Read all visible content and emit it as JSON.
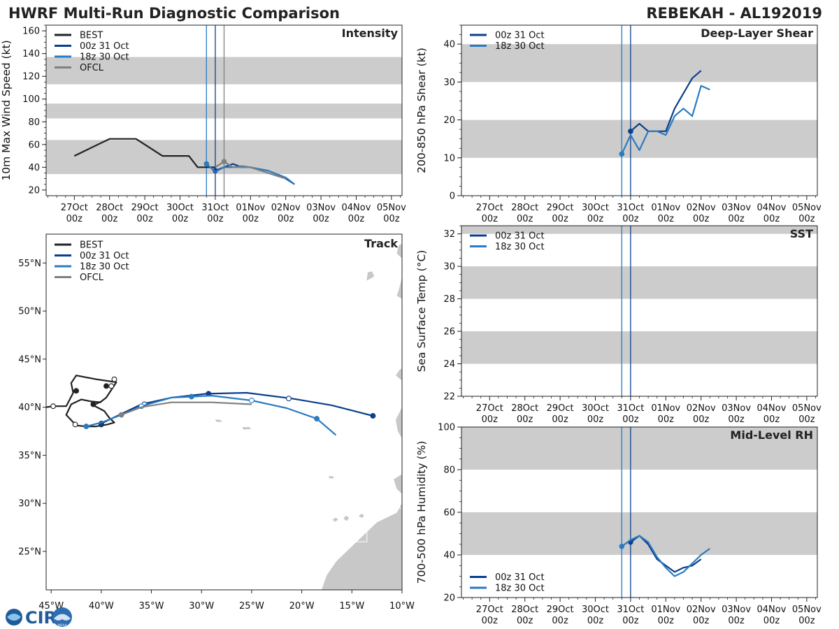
{
  "header": {
    "left_title": "HWRF Multi-Run Diagnostic Comparison",
    "right_title": "REBEKAH - AL192019"
  },
  "colors": {
    "best": "#222222",
    "run_00z": "#0b3f8c",
    "run_18z": "#2b7bc0",
    "ofcl": "#808080",
    "band": "#cccccc",
    "land": "#c8c8c8"
  },
  "date_ticks": [
    "27Oct",
    "28Oct",
    "29Oct",
    "30Oct",
    "31Oct",
    "01Nov",
    "02Nov",
    "03Nov",
    "04Nov",
    "05Nov"
  ],
  "hour_tick": "00z",
  "chart_data": [
    {
      "id": "intensity",
      "type": "line",
      "title": "Intensity",
      "ylabel": "10m Max Wind Speed (kt)",
      "xlim": [
        -0.8,
        9.3
      ],
      "ylim": [
        15,
        165
      ],
      "yticks": [
        20,
        40,
        60,
        80,
        100,
        120,
        140,
        160
      ],
      "bands": [
        [
          34,
          64
        ],
        [
          83,
          96
        ],
        [
          113,
          137
        ]
      ],
      "vlines": [
        {
          "x": 3.75,
          "series": "18z 30 Oct"
        },
        {
          "x": 4.0,
          "series": "00z 31 Oct"
        },
        {
          "x": 4.25,
          "series": "OFCL"
        }
      ],
      "legend": [
        "BEST",
        "00z 31 Oct",
        "18z 30 Oct",
        "OFCL"
      ],
      "series": [
        {
          "name": "BEST",
          "x": [
            0.0,
            1.0,
            1.75,
            2.5,
            3.25,
            3.5,
            4.0
          ],
          "y": [
            50,
            65,
            65,
            50,
            50,
            40,
            40
          ]
        },
        {
          "name": "00z 31 Oct",
          "x": [
            4.0,
            4.25,
            4.5,
            4.75,
            5.0,
            5.5,
            6.0,
            6.25
          ],
          "y": [
            37,
            40,
            43,
            40,
            40,
            35,
            30,
            25
          ],
          "marker_index": 0
        },
        {
          "name": "18z 30 Oct",
          "x": [
            3.75,
            4.0,
            4.25,
            4.5,
            4.75,
            5.0,
            5.5,
            6.0,
            6.25
          ],
          "y": [
            43,
            36,
            40,
            40,
            41,
            40,
            37,
            31,
            25
          ],
          "marker_index": 0
        },
        {
          "name": "OFCL",
          "x": [
            4.0,
            4.25,
            4.5,
            5.0,
            5.5,
            6.0
          ],
          "y": [
            40,
            45,
            40,
            40,
            35,
            30
          ],
          "marker_index": 1
        }
      ]
    },
    {
      "id": "shear",
      "type": "line",
      "title": "Deep-Layer Shear",
      "ylabel": "200-850 hPa Shear (kt)",
      "xlim": [
        -0.8,
        9.3
      ],
      "ylim": [
        0,
        45
      ],
      "yticks": [
        0,
        10,
        20,
        30,
        40
      ],
      "bands": [
        [
          10,
          20
        ],
        [
          30,
          40
        ]
      ],
      "vlines": [
        {
          "x": 3.75,
          "series": "18z 30 Oct"
        },
        {
          "x": 4.0,
          "series": "00z 31 Oct"
        }
      ],
      "legend": [
        "00z 31 Oct",
        "18z 30 Oct"
      ],
      "series": [
        {
          "name": "00z 31 Oct",
          "x": [
            4.0,
            4.25,
            4.5,
            5.0,
            5.25,
            5.5,
            5.75,
            6.0
          ],
          "y": [
            17,
            19,
            17,
            17,
            23,
            27,
            31,
            33
          ],
          "marker_index": 0
        },
        {
          "name": "18z 30 Oct",
          "x": [
            3.75,
            4.0,
            4.25,
            4.5,
            4.75,
            5.0,
            5.25,
            5.5,
            5.75,
            6.0,
            6.25
          ],
          "y": [
            11,
            16,
            12,
            17,
            17,
            16,
            21,
            23,
            21,
            29,
            28
          ],
          "marker_index": 0
        }
      ]
    },
    {
      "id": "sst",
      "type": "line",
      "title": "SST",
      "ylabel": "Sea Surface Temp (°C)",
      "xlim": [
        -0.8,
        9.3
      ],
      "ylim": [
        22,
        32.5
      ],
      "yticks": [
        22,
        24,
        26,
        28,
        30,
        32
      ],
      "bands": [
        [
          24,
          26
        ],
        [
          28,
          30
        ],
        [
          32,
          32.5
        ]
      ],
      "vlines": [
        {
          "x": 3.75,
          "series": "18z 30 Oct"
        },
        {
          "x": 4.0,
          "series": "00z 31 Oct"
        }
      ],
      "legend": [
        "00z 31 Oct",
        "18z 30 Oct"
      ],
      "series": []
    },
    {
      "id": "rh",
      "type": "line",
      "title": "Mid-Level RH",
      "ylabel": "700-500 hPa Humidity (%)",
      "xlim": [
        -0.8,
        9.3
      ],
      "ylim": [
        20,
        100
      ],
      "yticks": [
        20,
        40,
        60,
        80,
        100
      ],
      "bands": [
        [
          40,
          60
        ],
        [
          80,
          100
        ]
      ],
      "vlines": [
        {
          "x": 3.75,
          "series": "18z 30 Oct"
        },
        {
          "x": 4.0,
          "series": "00z 31 Oct"
        }
      ],
      "legend": [
        "00z 31 Oct",
        "18z 30 Oct"
      ],
      "series": [
        {
          "name": "00z 31 Oct",
          "x": [
            4.0,
            4.25,
            4.5,
            4.75,
            5.0,
            5.25,
            5.5,
            5.75,
            6.0
          ],
          "y": [
            46,
            49,
            45,
            38,
            35,
            32,
            34,
            35,
            38
          ],
          "marker_index": 0
        },
        {
          "name": "18z 30 Oct",
          "x": [
            3.75,
            4.0,
            4.25,
            4.5,
            4.75,
            5.0,
            5.25,
            5.5,
            5.75,
            6.0,
            6.25
          ],
          "y": [
            44,
            47,
            49,
            46,
            39,
            34,
            30,
            32,
            36,
            40,
            43
          ],
          "marker_index": 0
        }
      ]
    },
    {
      "id": "track",
      "type": "scatter",
      "title": "Track",
      "xlim": [
        -45.5,
        -10
      ],
      "ylim": [
        21,
        58
      ],
      "xticks": [
        -45,
        -40,
        -35,
        -30,
        -25,
        -20,
        -15,
        -10
      ],
      "xtick_labels": [
        "45°W",
        "40°W",
        "35°W",
        "30°W",
        "25°W",
        "20°W",
        "15°W",
        "10°W"
      ],
      "yticks": [
        25,
        30,
        35,
        40,
        45,
        50,
        55
      ],
      "ytick_labels": [
        "25°N",
        "30°N",
        "35°N",
        "40°N",
        "45°N",
        "50°N",
        "55°N"
      ],
      "legend": [
        "BEST",
        "00z 31 Oct",
        "18z 30 Oct",
        "OFCL"
      ],
      "series": [
        {
          "name": "BEST",
          "x": [
            -45.5,
            -44.8,
            -43.5,
            -42.8,
            -43.0,
            -42.5,
            -40.5,
            -38.5,
            -39.0,
            -39.5,
            -40.0,
            -40.8,
            -39.7,
            -39.2,
            -38.7,
            -39.4,
            -40.0,
            -40.5,
            -41.5,
            -42.5,
            -43.5,
            -43.0,
            -42.0,
            -41.0,
            -40.0
          ],
          "y": [
            40.0,
            40.1,
            40.1,
            41.5,
            42.5,
            43.3,
            42.9,
            42.6,
            41.8,
            41.0,
            40.6,
            40.2,
            39.6,
            38.9,
            38.4,
            38.2,
            38.1,
            38.0,
            38.0,
            38.1,
            39.2,
            40.3,
            40.8,
            40.6,
            40.5
          ],
          "markers": [
            {
              "x": -44.8,
              "y": 40.1,
              "fill": "white"
            },
            {
              "x": -42.5,
              "y": 41.7,
              "fill": "filled"
            },
            {
              "x": -38.7,
              "y": 42.9,
              "fill": "white"
            },
            {
              "x": -39.5,
              "y": 42.2,
              "fill": "filled"
            },
            {
              "x": -39.0,
              "y": 42.2,
              "fill": "white"
            },
            {
              "x": -40.8,
              "y": 40.3,
              "fill": "filled"
            },
            {
              "x": -42.6,
              "y": 38.2,
              "fill": "white"
            },
            {
              "x": -40.0,
              "y": 38.2,
              "fill": "filled"
            }
          ]
        },
        {
          "name": "00z 31 Oct",
          "x": [
            -40.0,
            -38.0,
            -36.0,
            -33.0,
            -29.5,
            -25.5,
            -21.0,
            -17.0,
            -12.9
          ],
          "y": [
            38.3,
            39.3,
            40.3,
            41.0,
            41.4,
            41.5,
            40.9,
            40.2,
            39.1
          ],
          "markers": [
            {
              "x": -40.0,
              "y": 38.3,
              "fill": "filled"
            },
            {
              "x": -35.7,
              "y": 40.3,
              "fill": "white"
            },
            {
              "x": -29.3,
              "y": 41.4,
              "fill": "filled"
            },
            {
              "x": -21.3,
              "y": 40.9,
              "fill": "white"
            },
            {
              "x": -12.9,
              "y": 39.1,
              "fill": "filled"
            }
          ]
        },
        {
          "name": "18z 30 Oct",
          "x": [
            -41.5,
            -40.0,
            -38.0,
            -36.0,
            -33.0,
            -29.0,
            -25.0,
            -21.5,
            -18.5,
            -16.6
          ],
          "y": [
            38.0,
            38.4,
            39.2,
            40.1,
            41.0,
            41.2,
            40.7,
            39.9,
            38.8,
            37.1
          ],
          "markers": [
            {
              "x": -41.5,
              "y": 38.0,
              "fill": "filled"
            },
            {
              "x": -36.0,
              "y": 40.1,
              "fill": "white"
            },
            {
              "x": -31.0,
              "y": 41.1,
              "fill": "filled"
            },
            {
              "x": -25.0,
              "y": 40.7,
              "fill": "white"
            },
            {
              "x": -18.5,
              "y": 38.8,
              "fill": "filled"
            }
          ]
        },
        {
          "name": "OFCL",
          "x": [
            -38.0,
            -36.0,
            -33.0,
            -29.0,
            -25.0
          ],
          "y": [
            39.2,
            40.0,
            40.5,
            40.5,
            40.3
          ],
          "markers": [
            {
              "x": -38.0,
              "y": 39.2,
              "fill": "filled"
            }
          ]
        }
      ]
    }
  ],
  "logo": {
    "text": "CIRA",
    "sub": "NOAA"
  }
}
